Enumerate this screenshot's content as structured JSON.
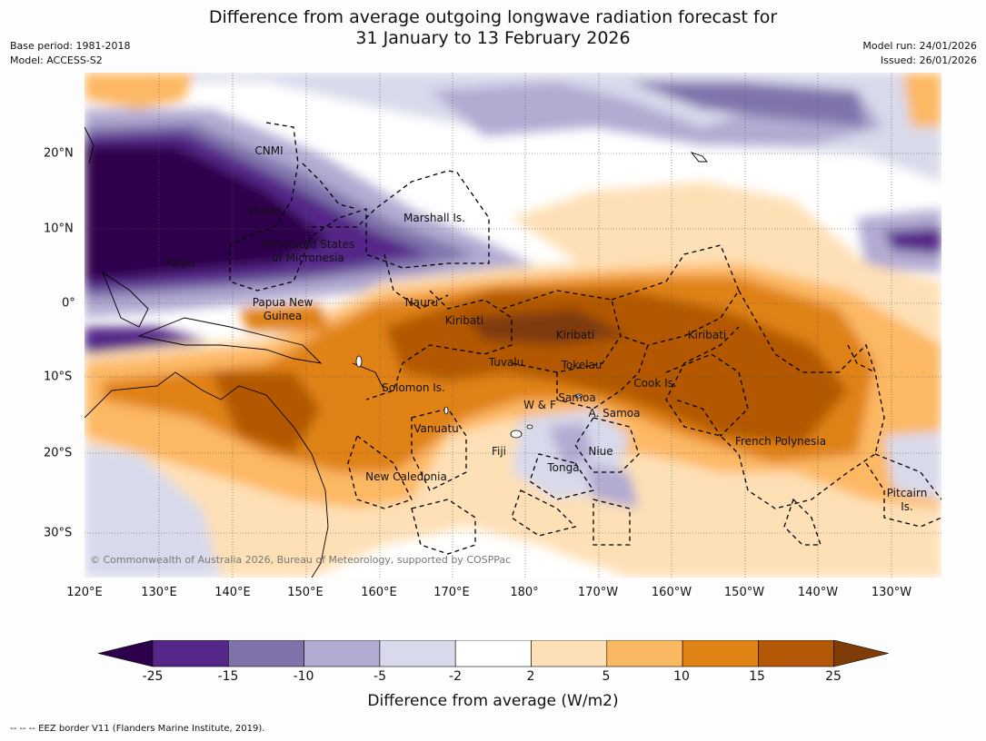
{
  "header": {
    "title_line1": "Difference from average outgoing longwave radiation forecast for",
    "title_line2": "31 January to 13 February 2026",
    "base_period": "Base period: 1981-2018",
    "model": "Model: ACCESS-S2",
    "model_run": "Model run: 24/01/2026",
    "issued": "Issued: 26/01/2026"
  },
  "axes": {
    "lon_ticks": [
      "120°E",
      "130°E",
      "140°E",
      "150°E",
      "160°E",
      "170°E",
      "180°",
      "170°W",
      "160°W",
      "150°W",
      "140°W",
      "130°W"
    ],
    "lat_ticks": [
      "20°N",
      "10°N",
      "0°",
      "10°S",
      "20°S",
      "30°S"
    ]
  },
  "places": [
    {
      "id": "cnmi",
      "label": "CNMI"
    },
    {
      "id": "guam",
      "label": "Guam"
    },
    {
      "id": "marshall",
      "label": "Marshall Is."
    },
    {
      "id": "fsm1",
      "label": "Federated States"
    },
    {
      "id": "fsm2",
      "label": "of Micronesia"
    },
    {
      "id": "palau",
      "label": "Palau"
    },
    {
      "id": "nauru",
      "label": "Nauru"
    },
    {
      "id": "png1",
      "label": "Papua New"
    },
    {
      "id": "png2",
      "label": "Guinea"
    },
    {
      "id": "kiribati1",
      "label": "Kiribati"
    },
    {
      "id": "kiribati2",
      "label": "Kiribati"
    },
    {
      "id": "kiribati3",
      "label": "Kiribati"
    },
    {
      "id": "tuvalu",
      "label": "Tuvalu"
    },
    {
      "id": "tokelau",
      "label": "Tokelau"
    },
    {
      "id": "cook",
      "label": "Cook Is."
    },
    {
      "id": "solomon",
      "label": "Solomon Is."
    },
    {
      "id": "wf",
      "label": "W & F"
    },
    {
      "id": "samoa",
      "label": "Samoa"
    },
    {
      "id": "asamoa",
      "label": "A. Samoa"
    },
    {
      "id": "vanuatu",
      "label": "Vanuatu"
    },
    {
      "id": "fiji",
      "label": "Fiji"
    },
    {
      "id": "niue",
      "label": "Niue"
    },
    {
      "id": "french_poly",
      "label": "French Polynesia"
    },
    {
      "id": "tonga",
      "label": "Tonga"
    },
    {
      "id": "newcal",
      "label": "New Caledonia"
    },
    {
      "id": "pitcairn1",
      "label": "Pitcairn"
    },
    {
      "id": "pitcairn2",
      "label": "Is."
    }
  ],
  "copyright": "© Commonwealth of Australia 2026, Bureau of Meteorology, supported by COSPPac",
  "colorbar": {
    "labels": [
      "-25",
      "-15",
      "-10",
      "-5",
      "-2",
      "2",
      "5",
      "10",
      "15",
      "25"
    ],
    "colors": [
      "#2d004b",
      "#542788",
      "#8073ac",
      "#b2abd2",
      "#d8daeb",
      "#ffffff",
      "#fee0b6",
      "#fdb863",
      "#e08214",
      "#b35806",
      "#7f3b08"
    ],
    "title": "Difference from average (W/m2)"
  },
  "footnote": "--  --  -- EEZ border V11 (Flanders Marine Institute, 2019)."
}
